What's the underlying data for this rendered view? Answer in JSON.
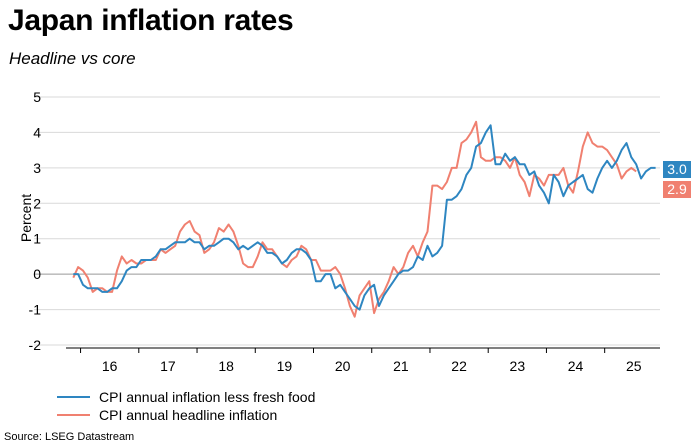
{
  "title": "Japan inflation rates",
  "subtitle": "Headline vs core",
  "source": "Source: LSEG Datastream",
  "colors": {
    "core": "#2e86c1",
    "headline": "#f08070",
    "grid": "#d9d9d9",
    "zero": "#999999"
  },
  "badges": {
    "core": "3.0",
    "headline": "2.9"
  },
  "chart_data": {
    "type": "line",
    "title": "Japan inflation rates",
    "subtitle": "Headline vs core",
    "xlabel": "",
    "ylabel": "Percent",
    "ylim": [
      -2,
      5
    ],
    "yticks": [
      "-2",
      "-1",
      "0",
      "1",
      "2",
      "3",
      "4",
      "5"
    ],
    "xlim": [
      2015.75,
      2025.95
    ],
    "xticks": [
      {
        "label": "16",
        "value": 2016.5
      },
      {
        "label": "17",
        "value": 2017.5
      },
      {
        "label": "18",
        "value": 2018.5
      },
      {
        "label": "19",
        "value": 2019.5
      },
      {
        "label": "20",
        "value": 2020.5
      },
      {
        "label": "21",
        "value": 2021.5
      },
      {
        "label": "22",
        "value": 2022.5
      },
      {
        "label": "23",
        "value": 2023.5
      },
      {
        "label": "24",
        "value": 2024.5
      },
      {
        "label": "25",
        "value": 2025.5
      }
    ],
    "x_start": 2015.875,
    "x_step": 0.08333,
    "series": [
      {
        "name": "CPI annual inflation less fresh food",
        "key": "core",
        "values": [
          0.0,
          0.0,
          -0.3,
          -0.4,
          -0.4,
          -0.4,
          -0.5,
          -0.5,
          -0.4,
          -0.4,
          -0.2,
          0.1,
          0.2,
          0.2,
          0.4,
          0.4,
          0.4,
          0.5,
          0.7,
          0.7,
          0.8,
          0.9,
          0.9,
          0.9,
          1.0,
          0.9,
          0.9,
          0.7,
          0.8,
          0.8,
          0.9,
          1.0,
          1.0,
          0.9,
          0.7,
          0.8,
          0.7,
          0.8,
          0.9,
          0.8,
          0.6,
          0.6,
          0.5,
          0.3,
          0.4,
          0.6,
          0.7,
          0.7,
          0.6,
          0.4,
          -0.2,
          -0.2,
          0.0,
          0.0,
          -0.4,
          -0.3,
          -0.5,
          -0.7,
          -0.9,
          -1.0,
          -0.6,
          -0.4,
          -0.3,
          -0.9,
          -0.6,
          -0.4,
          -0.2,
          0.0,
          0.1,
          0.1,
          0.2,
          0.5,
          0.4,
          0.8,
          0.5,
          0.6,
          0.8,
          2.1,
          2.1,
          2.2,
          2.4,
          2.8,
          3.0,
          3.6,
          3.7,
          4.0,
          4.2,
          3.1,
          3.1,
          3.4,
          3.2,
          3.3,
          3.1,
          3.1,
          2.8,
          2.9,
          2.5,
          2.3,
          2.0,
          2.8,
          2.6,
          2.2,
          2.5,
          2.6,
          2.7,
          2.8,
          2.4,
          2.3,
          2.7,
          3.0,
          3.2,
          3.0,
          3.2,
          3.5,
          3.7,
          3.3,
          3.1,
          2.7,
          2.9,
          3.0,
          3.0
        ]
      },
      {
        "name": "CPI annual headline inflation",
        "key": "headline",
        "values": [
          -0.1,
          0.2,
          0.1,
          -0.1,
          -0.5,
          -0.4,
          -0.4,
          -0.5,
          -0.5,
          0.1,
          0.5,
          0.3,
          0.4,
          0.3,
          0.3,
          0.4,
          0.4,
          0.4,
          0.7,
          0.6,
          0.7,
          0.8,
          1.2,
          1.4,
          1.5,
          1.2,
          1.1,
          0.6,
          0.7,
          0.9,
          1.3,
          1.2,
          1.4,
          1.2,
          0.8,
          0.3,
          0.2,
          0.2,
          0.5,
          0.9,
          0.7,
          0.7,
          0.5,
          0.3,
          0.2,
          0.4,
          0.5,
          0.8,
          0.7,
          0.4,
          0.4,
          0.1,
          0.1,
          0.1,
          0.2,
          0.0,
          -0.4,
          -0.9,
          -1.2,
          -0.6,
          -0.4,
          -0.2,
          -1.1,
          -0.7,
          -0.5,
          -0.2,
          0.2,
          0.0,
          0.2,
          0.6,
          0.8,
          0.5,
          0.9,
          1.2,
          2.5,
          2.5,
          2.4,
          2.6,
          3.0,
          3.0,
          3.7,
          3.8,
          4.0,
          4.3,
          3.3,
          3.2,
          3.2,
          3.3,
          3.3,
          3.2,
          3.0,
          3.3,
          2.8,
          2.6,
          2.2,
          2.8,
          2.7,
          2.5,
          2.8,
          2.8,
          2.8,
          3.0,
          2.5,
          2.3,
          2.9,
          3.6,
          4.0,
          3.7,
          3.6,
          3.6,
          3.5,
          3.3,
          3.1,
          2.7,
          2.9,
          3.0,
          2.9
        ]
      }
    ]
  }
}
